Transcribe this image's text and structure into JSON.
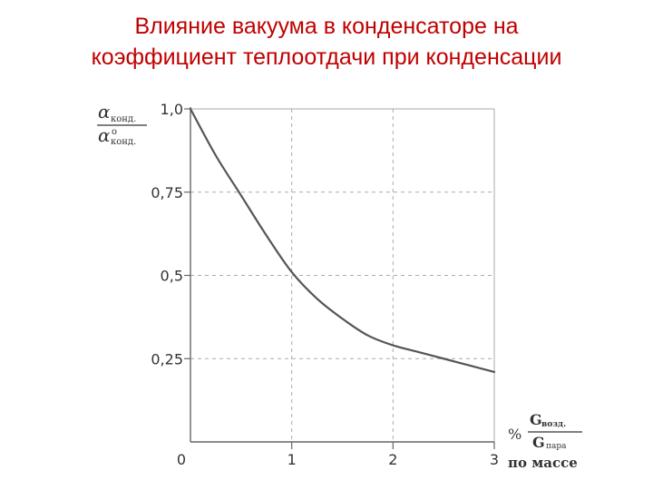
{
  "slide": {
    "title_line1": "Влияние вакуума в конденсаторе на",
    "title_line2": "коэффициент теплоотдачи при  конденсации"
  },
  "chart_data": {
    "type": "line",
    "title": "Влияние вакуума в конденсаторе на коэффициент теплоотдачи при  конденсации",
    "ylabel": {
      "numerator_symbol": "α",
      "numerator_sub": "конд.",
      "denominator_symbol": "α",
      "denominator_sup": "o",
      "denominator_sub": "конд."
    },
    "xlabel": {
      "unit": "%",
      "numerator": "G",
      "numerator_sub": "возд.",
      "denominator": "G",
      "denominator_sub": "пара",
      "note": "по массе"
    },
    "xlim": [
      0,
      3
    ],
    "ylim": [
      0,
      1.0
    ],
    "x_ticks": [
      "0",
      "1",
      "2",
      "3"
    ],
    "y_ticks": [
      "1,0",
      "0,75",
      "0,5",
      "0,25"
    ],
    "grid": true,
    "series": [
      {
        "x": [
          0,
          0.25,
          0.5,
          0.75,
          1.0,
          1.25,
          1.5,
          1.75,
          2.0,
          2.25,
          2.5,
          2.75,
          3.0
        ],
        "y": [
          1.0,
          0.86,
          0.74,
          0.62,
          0.51,
          0.43,
          0.37,
          0.32,
          0.29,
          0.27,
          0.25,
          0.23,
          0.21
        ]
      }
    ],
    "colors": {
      "curve": "#555555",
      "grid": "#aaaaaa",
      "axis": "#666666"
    }
  }
}
